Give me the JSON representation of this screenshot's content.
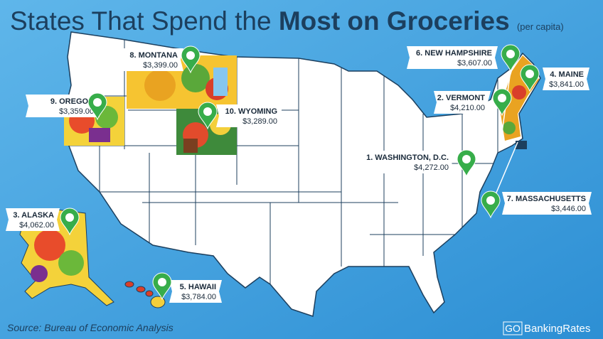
{
  "header": {
    "title_plain": "States That Spend the",
    "title_bold": "Most on Groceries",
    "title_note": "(per capita)"
  },
  "markers": [
    {
      "label": "1. WASHINGTON, D.C.",
      "amount": "$4,272.00"
    },
    {
      "label": "2. VERMONT",
      "amount": "$4,210.00"
    },
    {
      "label": "3. ALASKA",
      "amount": "$4,062.00"
    },
    {
      "label": "4. MAINE",
      "amount": "$3,841.00"
    },
    {
      "label": "5. HAWAII",
      "amount": "$3,784.00"
    },
    {
      "label": "6. NEW HAMPSHIRE",
      "amount": "$3,607.00"
    },
    {
      "label": "7. MASSACHUSETTS",
      "amount": "$3,446.00"
    },
    {
      "label": "8. MONTANA",
      "amount": "$3,399.00"
    },
    {
      "label": "9. OREGON",
      "amount": "$3,359.00"
    },
    {
      "label": "10. WYOMING",
      "amount": "$3,289.00"
    }
  ],
  "footer": {
    "source": "Source: Bureau of Economic Analysis",
    "logo_go": "GO",
    "logo_name": "BankingRates"
  }
}
